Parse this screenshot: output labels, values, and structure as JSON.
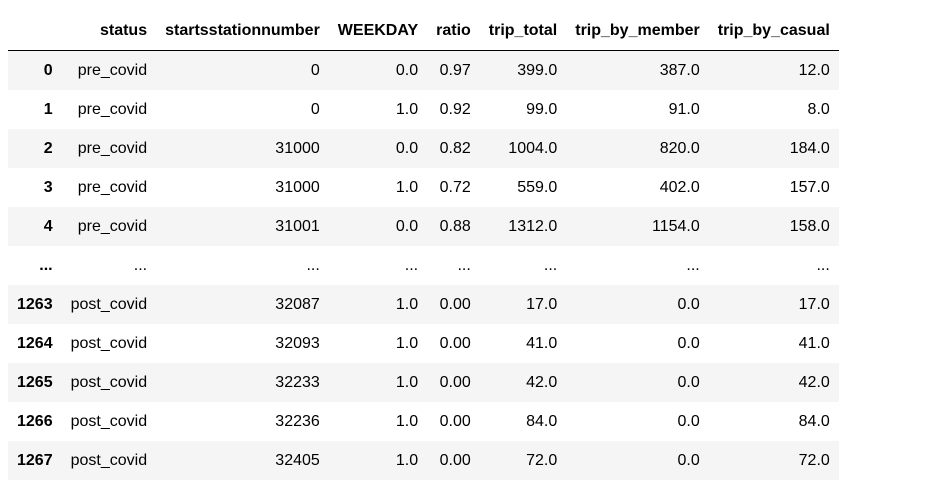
{
  "table": {
    "columns": [
      "",
      "status",
      "startsstationnumber",
      "WEEKDAY",
      "ratio",
      "trip_total",
      "trip_by_member",
      "trip_by_casual"
    ],
    "rows": [
      {
        "index": "0",
        "cells": [
          "pre_covid",
          "0",
          "0.0",
          "0.97",
          "399.0",
          "387.0",
          "12.0"
        ]
      },
      {
        "index": "1",
        "cells": [
          "pre_covid",
          "0",
          "1.0",
          "0.92",
          "99.0",
          "91.0",
          "8.0"
        ]
      },
      {
        "index": "2",
        "cells": [
          "pre_covid",
          "31000",
          "0.0",
          "0.82",
          "1004.0",
          "820.0",
          "184.0"
        ]
      },
      {
        "index": "3",
        "cells": [
          "pre_covid",
          "31000",
          "1.0",
          "0.72",
          "559.0",
          "402.0",
          "157.0"
        ]
      },
      {
        "index": "4",
        "cells": [
          "pre_covid",
          "31001",
          "0.0",
          "0.88",
          "1312.0",
          "1154.0",
          "158.0"
        ]
      },
      {
        "index": "...",
        "cells": [
          "...",
          "...",
          "...",
          "...",
          "...",
          "...",
          "..."
        ]
      },
      {
        "index": "1263",
        "cells": [
          "post_covid",
          "32087",
          "1.0",
          "0.00",
          "17.0",
          "0.0",
          "17.0"
        ]
      },
      {
        "index": "1264",
        "cells": [
          "post_covid",
          "32093",
          "1.0",
          "0.00",
          "41.0",
          "0.0",
          "41.0"
        ]
      },
      {
        "index": "1265",
        "cells": [
          "post_covid",
          "32233",
          "1.0",
          "0.00",
          "42.0",
          "0.0",
          "42.0"
        ]
      },
      {
        "index": "1266",
        "cells": [
          "post_covid",
          "32236",
          "1.0",
          "0.00",
          "84.0",
          "0.0",
          "84.0"
        ]
      },
      {
        "index": "1267",
        "cells": [
          "post_covid",
          "32405",
          "1.0",
          "0.00",
          "72.0",
          "0.0",
          "72.0"
        ]
      }
    ]
  }
}
